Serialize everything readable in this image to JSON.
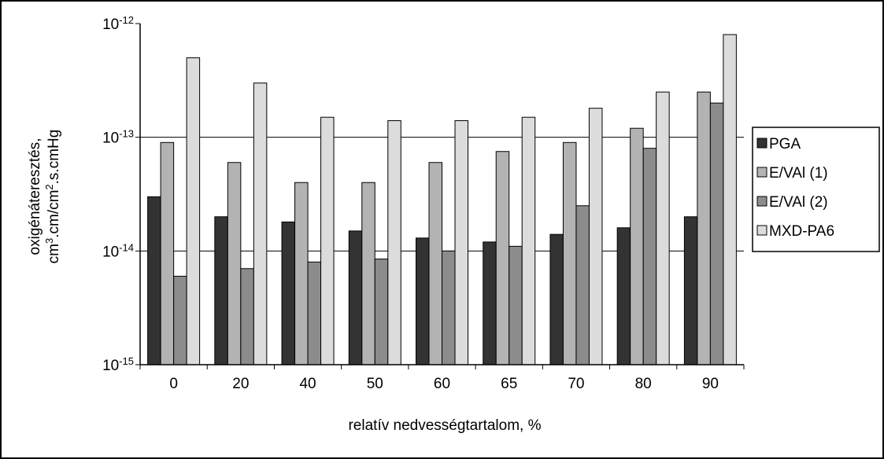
{
  "chart_data": {
    "type": "bar",
    "y_scale": "log",
    "ylim": [
      1e-15,
      1e-12
    ],
    "grid": true,
    "legend_position": "right",
    "xlabel": "relatív nedvességtartalom, %",
    "ylabel_line1": "oxigénáteresztés,",
    "ylabel_line2_parts": [
      "cm",
      "3",
      ".cm/cm",
      "2",
      ".s.cmHg"
    ],
    "y_ticks": [
      {
        "mantissa": "10",
        "exponent": "-15",
        "value": 1e-15
      },
      {
        "mantissa": "10",
        "exponent": "-14",
        "value": 1e-14
      },
      {
        "mantissa": "10",
        "exponent": "-13",
        "value": 1e-13
      },
      {
        "mantissa": "10",
        "exponent": "-12",
        "value": 1e-12
      }
    ],
    "categories": [
      "0",
      "20",
      "40",
      "50",
      "60",
      "65",
      "70",
      "80",
      "90"
    ],
    "series": [
      {
        "name": "PGA",
        "color": "#333333",
        "values": [
          3e-14,
          2e-14,
          1.8e-14,
          1.5e-14,
          1.3e-14,
          1.2e-14,
          1.4e-14,
          1.6e-14,
          2e-14
        ]
      },
      {
        "name": "E/VAl (1)",
        "color": "#b3b3b3",
        "values": [
          9e-14,
          6e-14,
          4e-14,
          4e-14,
          6e-14,
          7.5e-14,
          9e-14,
          1.2e-13,
          2.5e-13
        ]
      },
      {
        "name": "E/VAl (2)",
        "color": "#8c8c8c",
        "values": [
          6e-15,
          7e-15,
          8e-15,
          8.5e-15,
          1e-14,
          1.1e-14,
          2.5e-14,
          8e-14,
          2e-13
        ]
      },
      {
        "name": "MXD-PA6",
        "color": "#dcdcdc",
        "values": [
          5e-13,
          3e-13,
          1.5e-13,
          1.4e-13,
          1.4e-13,
          1.5e-13,
          1.8e-13,
          2.5e-13,
          8e-13
        ]
      }
    ]
  }
}
